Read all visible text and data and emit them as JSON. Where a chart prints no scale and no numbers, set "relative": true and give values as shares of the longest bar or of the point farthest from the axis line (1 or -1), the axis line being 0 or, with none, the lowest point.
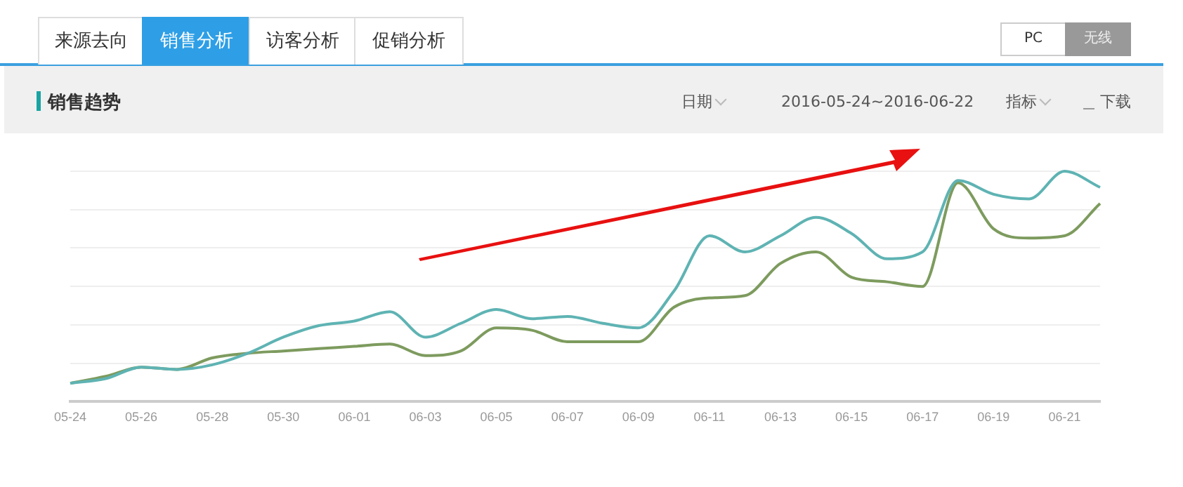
{
  "chart_data": {
    "type": "line",
    "title": "销售趋势",
    "relative": true,
    "grid": "y",
    "marker": "none",
    "line_style": "solid",
    "legend": false,
    "categories": [
      "05-24",
      null,
      "05-26",
      null,
      "05-28",
      null,
      "05-30",
      null,
      "06-01",
      null,
      "06-03",
      null,
      "06-05",
      null,
      "06-07",
      null,
      "06-09",
      null,
      "06-11",
      null,
      "06-13",
      null,
      "06-15",
      null,
      "06-17",
      null,
      "06-19",
      null,
      "06-21",
      null
    ],
    "series": [
      {
        "color": "#5fb3b3",
        "values": [
          0.08,
          0.1,
          0.15,
          0.14,
          0.16,
          0.21,
          0.28,
          0.33,
          0.35,
          0.39,
          0.28,
          0.34,
          0.4,
          0.36,
          0.37,
          0.34,
          0.32,
          0.48,
          0.72,
          0.65,
          0.72,
          0.8,
          0.73,
          0.62,
          0.65,
          0.96,
          0.9,
          0.88,
          1,
          0.93
        ]
      },
      {
        "color": "#7d9b5e",
        "values": [
          0.08,
          0.11,
          0.15,
          0.14,
          0.19,
          0.21,
          0.22,
          0.23,
          0.24,
          0.25,
          0.2,
          0.22,
          0.32,
          0.31,
          0.26,
          0.26,
          0.26,
          0.41,
          0.45,
          0.46,
          0.6,
          0.65,
          0.54,
          0.52,
          0.5,
          0.95,
          0.75,
          0.71,
          0.72,
          0.86
        ]
      }
    ],
    "annotations": [
      "来源去向",
      "销售分析",
      "访客分析",
      "促销分析",
      "PC",
      "无线",
      "日期",
      "2016-05-24~2016-06-22",
      "指标",
      "下载"
    ]
  }
}
